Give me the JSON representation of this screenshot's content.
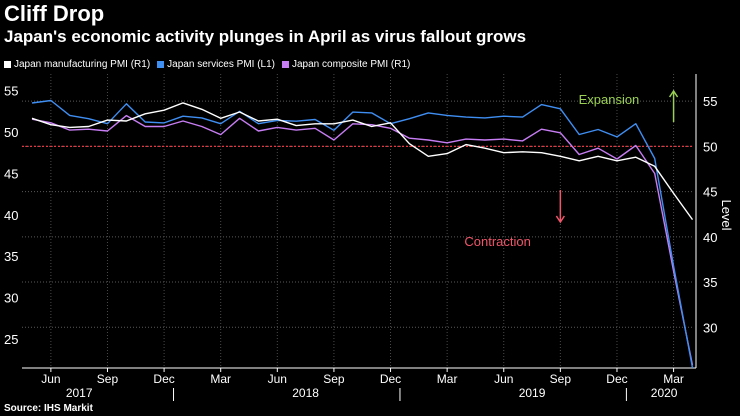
{
  "title": "Cliff Drop",
  "subtitle": "Japan's economic activity plunges in April as virus fallout grows",
  "source": "Source: IHS Markit",
  "chart_data": {
    "type": "line",
    "title": "Cliff Drop",
    "subtitle": "Japan's economic activity plunges in April as virus fallout grows",
    "x": [
      "2017-05",
      "2017-06",
      "2017-07",
      "2017-08",
      "2017-09",
      "2017-10",
      "2017-11",
      "2017-12",
      "2018-01",
      "2018-02",
      "2018-03",
      "2018-04",
      "2018-05",
      "2018-06",
      "2018-07",
      "2018-08",
      "2018-09",
      "2018-10",
      "2018-11",
      "2018-12",
      "2019-01",
      "2019-02",
      "2019-03",
      "2019-04",
      "2019-05",
      "2019-06",
      "2019-07",
      "2019-08",
      "2019-09",
      "2019-10",
      "2019-11",
      "2019-12",
      "2020-01",
      "2020-02",
      "2020-03",
      "2020-04"
    ],
    "series": [
      {
        "name": "Japan manufacturing PMI (R1)",
        "axis": "right",
        "color": "#ffffff",
        "values": [
          null,
          null,
          null,
          null,
          null,
          null,
          null,
          null,
          null,
          null,
          null,
          null,
          null,
          null,
          null,
          null,
          null,
          null,
          null,
          null,
          null,
          null,
          null,
          null,
          null,
          null,
          null,
          null,
          null,
          null,
          null,
          null,
          null,
          null,
          null,
          null
        ]
      },
      {
        "name": "Japan services PMI (L1)",
        "axis": "left",
        "color": "#3f8ef2",
        "values": [
          null,
          null,
          null,
          null,
          null,
          null,
          null,
          null,
          null,
          null,
          null,
          null,
          null,
          null,
          null,
          null,
          null,
          null,
          null,
          null,
          null,
          null,
          null,
          null,
          null,
          null,
          null,
          null,
          null,
          null,
          null,
          null,
          null,
          null,
          null,
          null
        ]
      },
      {
        "name": "Japan composite PMI (R1)",
        "axis": "right",
        "color": "#c77df3",
        "values": [
          null,
          null,
          null,
          null,
          null,
          null,
          null,
          null,
          null,
          null,
          null,
          null,
          null,
          null,
          null,
          null,
          null,
          null,
          null,
          null,
          null,
          null,
          null,
          null,
          null,
          null,
          null,
          null,
          null,
          null,
          null,
          null,
          null,
          null,
          null,
          null
        ]
      }
    ],
    "left_axis": {
      "ticks": [
        25,
        30,
        35,
        40,
        45,
        50,
        55
      ],
      "range": [
        21.5,
        57
      ]
    },
    "right_axis": {
      "label": "Level",
      "ticks": [
        30,
        35,
        40,
        45,
        50,
        55
      ],
      "range": [
        25.5,
        58
      ]
    },
    "threshold": {
      "value": 50,
      "axis": "right",
      "color": "#e8343f"
    },
    "x_tick_labels": [
      "Jun",
      "Sep",
      "Dec",
      "Mar",
      "Jun",
      "Sep",
      "Dec",
      "Mar",
      "Jun",
      "Sep",
      "Dec",
      "Mar"
    ],
    "x_tick_months": [
      "2017-06",
      "2017-09",
      "2017-12",
      "2018-03",
      "2018-06",
      "2018-09",
      "2018-12",
      "2019-03",
      "2019-06",
      "2019-09",
      "2019-12",
      "2020-03"
    ],
    "year_labels": [
      "2017",
      "2018",
      "2019",
      "2020"
    ],
    "year_label_months": [
      "2017-07.5",
      "2018-07.5",
      "2019-07.5",
      "2020-02.5"
    ],
    "annotations": [
      {
        "text": "Expansion",
        "color": "#9ad053",
        "arrow": "up",
        "at_month": "2020-03",
        "at_value_right": 53
      },
      {
        "text": "Contraction",
        "color": "#f0566a",
        "arrow": "down",
        "at_month": "2019-09",
        "at_value_right": 43
      }
    ]
  }
}
